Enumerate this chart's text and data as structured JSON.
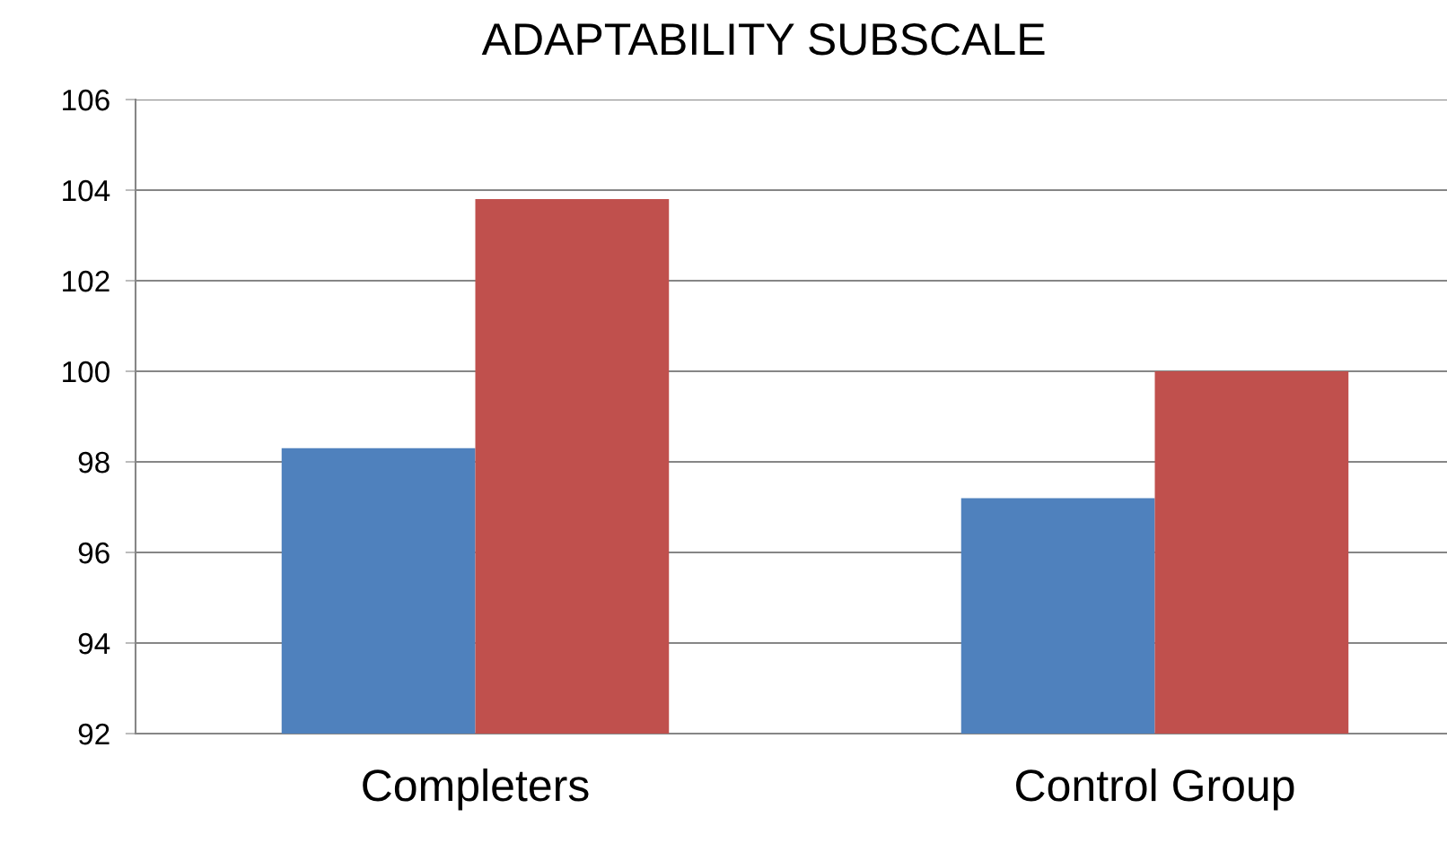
{
  "chart_data": {
    "type": "bar",
    "title": "ADAPTABILITY SUBSCALE",
    "categories": [
      "Completers",
      "Control Group"
    ],
    "series": [
      {
        "color": "#4f81bd",
        "values": [
          98.3,
          97.2
        ]
      },
      {
        "color": "#c0504d",
        "values": [
          103.8,
          100.0
        ]
      }
    ],
    "ylim": [
      92,
      106
    ],
    "yticks": [
      92,
      94,
      96,
      98,
      100,
      102,
      104,
      106
    ],
    "grid": "y",
    "legend": false
  }
}
